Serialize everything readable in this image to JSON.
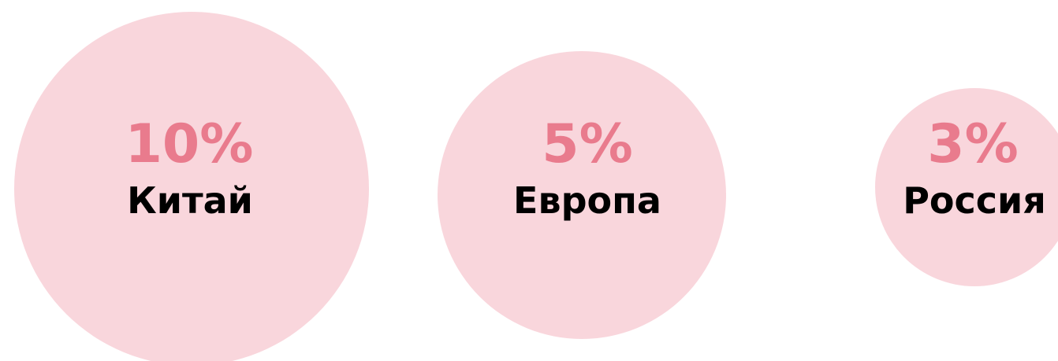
{
  "items": [
    {
      "percent": "10%",
      "label": "Китай"
    },
    {
      "percent": "5%",
      "label": "Европа"
    },
    {
      "percent": "3%",
      "label": "Россия"
    }
  ]
}
